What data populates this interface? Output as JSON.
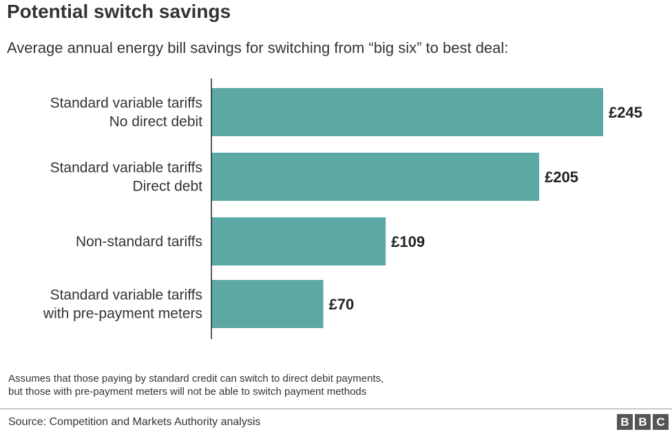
{
  "chart_data": {
    "type": "bar",
    "orientation": "horizontal",
    "title": "Potential switch savings",
    "subtitle": "Average annual energy bill savings for switching from “big six” to best deal:",
    "categories": [
      [
        "Standard variable tariffs",
        "No direct debit"
      ],
      [
        "Standard variable tariffs",
        "Direct debt"
      ],
      [
        "Non-standard tariffs"
      ],
      [
        "Standard variable tariffs",
        "with pre-payment meters"
      ]
    ],
    "values": [
      245,
      205,
      109,
      70
    ],
    "value_labels": [
      "£245",
      "£205",
      "£109",
      "£70"
    ],
    "xlim": [
      0,
      245
    ],
    "bar_color": "#5ba8a5",
    "grid": false,
    "legend": "none"
  },
  "footnote": [
    "Assumes that those paying by standard credit can switch to direct debit payments,",
    "but those with pre-payment meters will not be able to switch payment methods"
  ],
  "source": "Source: Competition and Markets Authority analysis",
  "logo_letters": [
    "B",
    "B",
    "C"
  ]
}
